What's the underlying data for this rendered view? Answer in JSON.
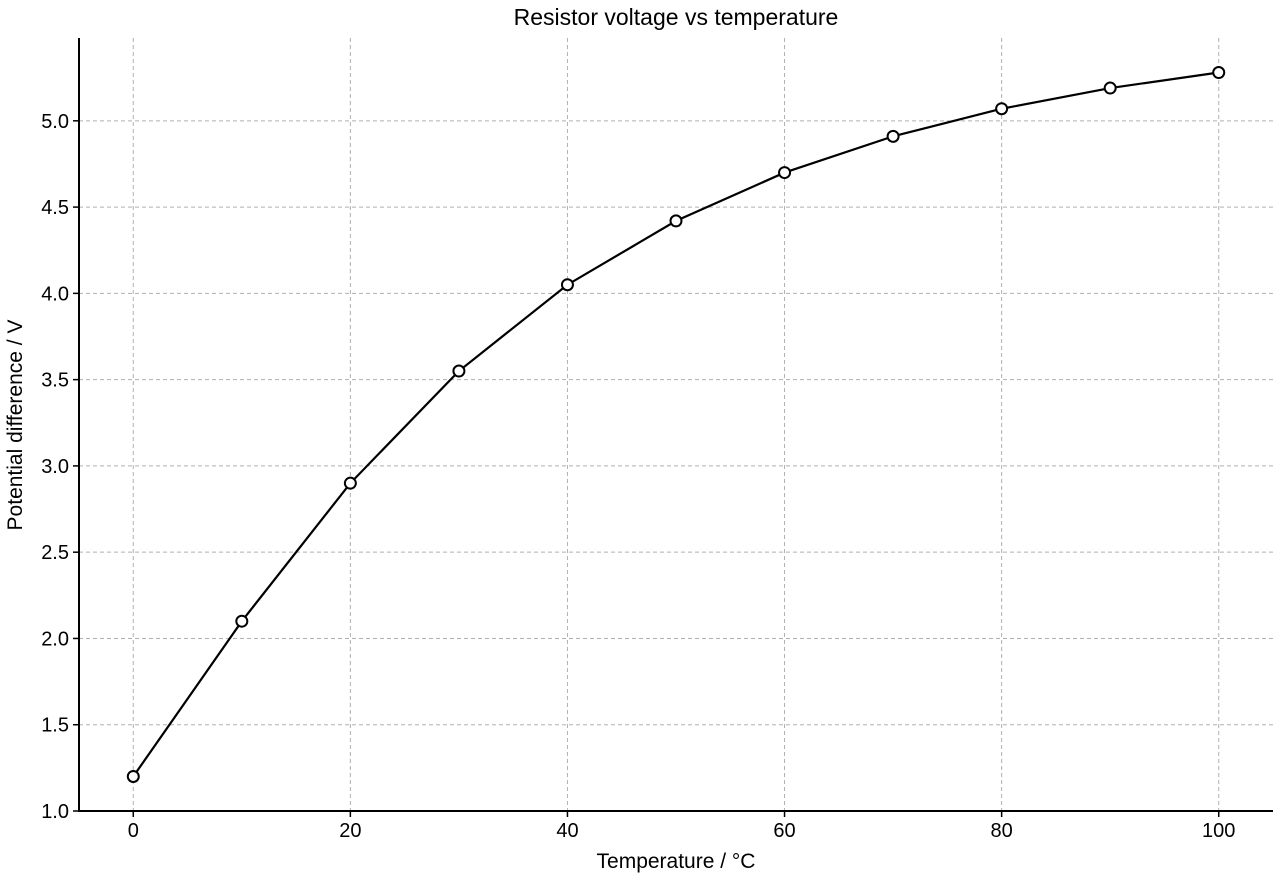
{
  "chart_data": {
    "type": "line",
    "title": "Resistor voltage vs temperature",
    "xlabel": "Temperature / °C",
    "ylabel": "Potential difference / V",
    "x": [
      0,
      10,
      20,
      30,
      40,
      50,
      60,
      70,
      80,
      90,
      100
    ],
    "series": [
      {
        "values": [
          1.2,
          2.1,
          2.9,
          3.55,
          4.05,
          4.42,
          4.7,
          4.91,
          5.07,
          5.19,
          5.28
        ]
      }
    ],
    "xlim": [
      -5,
      105
    ],
    "ylim": [
      1.0,
      5.48
    ],
    "xticks": [
      0,
      20,
      40,
      60,
      80,
      100
    ],
    "yticks": [
      1.0,
      1.5,
      2.0,
      2.5,
      3.0,
      3.5,
      4.0,
      4.5,
      5.0
    ],
    "xtick_labels": [
      "0",
      "20",
      "40",
      "60",
      "80",
      "100"
    ],
    "ytick_labels": [
      "1.0",
      "1.5",
      "2.0",
      "2.5",
      "3.0",
      "3.5",
      "4.0",
      "4.5",
      "5.0"
    ],
    "grid": true,
    "line_color": "#000000",
    "marker_fill": "#ffffff",
    "grid_color": "#b0b0b0"
  }
}
